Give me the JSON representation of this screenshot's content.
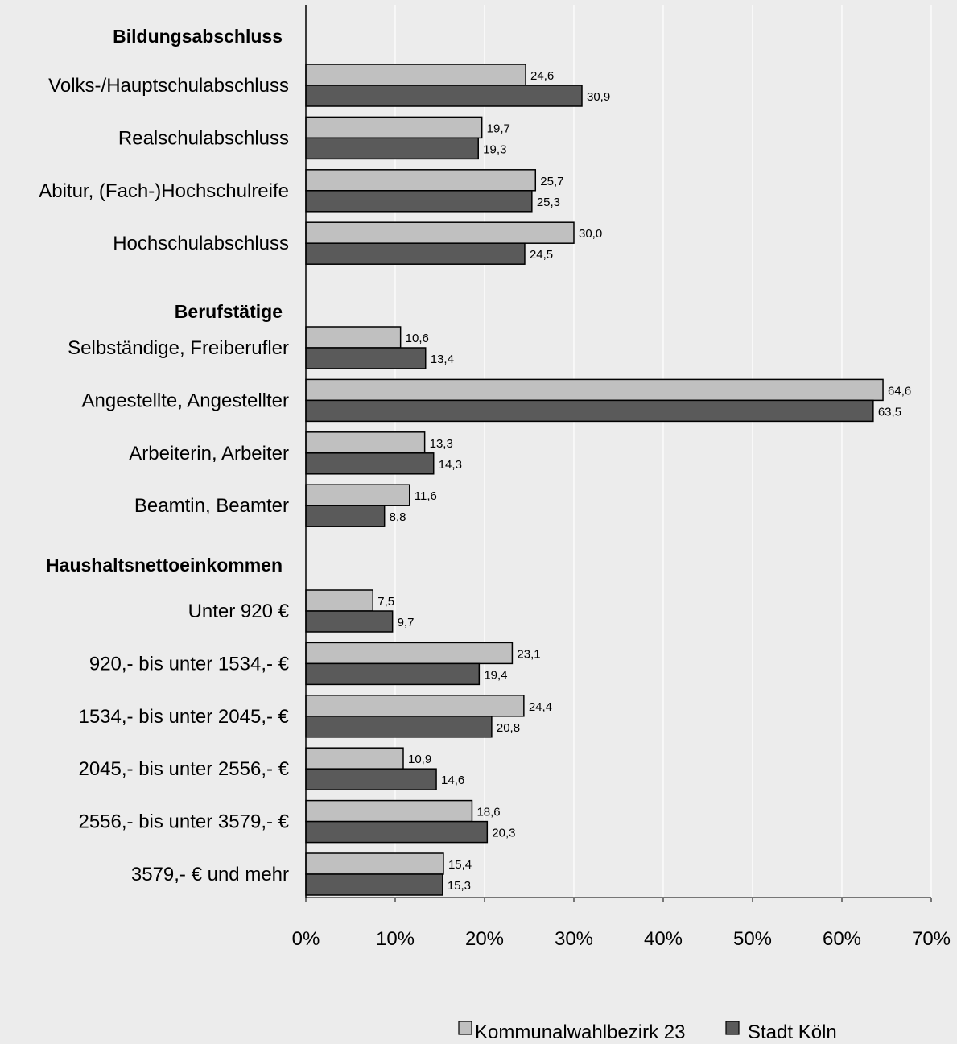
{
  "chart_data": {
    "type": "bar",
    "orientation": "horizontal",
    "x_axis": {
      "min": 0,
      "max": 70,
      "step": 10,
      "unit": "%",
      "tick_labels": [
        "0%",
        "10%",
        "20%",
        "30%",
        "40%",
        "50%",
        "60%",
        "70%"
      ]
    },
    "grid": true,
    "legend_position": "bottom-right",
    "series": [
      {
        "name": "Kommunalwahlbezirk 23",
        "color": "#c0c0c0"
      },
      {
        "name": "Stadt Köln",
        "color": "#5a5a5a"
      }
    ],
    "groups": [
      {
        "heading": "Bildungsabschluss",
        "rows": [
          {
            "label": "Volks-/Hauptschulabschluss",
            "values": [
              24.6,
              30.9
            ],
            "value_labels": [
              "24,6",
              "30,9"
            ]
          },
          {
            "label": "Realschulabschluss",
            "values": [
              19.7,
              19.3
            ],
            "value_labels": [
              "19,7",
              "19,3"
            ]
          },
          {
            "label": "Abitur, (Fach-)Hochschulreife",
            "values": [
              25.7,
              25.3
            ],
            "value_labels": [
              "25,7",
              "25,3"
            ]
          },
          {
            "label": "Hochschulabschluss",
            "values": [
              30.0,
              24.5
            ],
            "value_labels": [
              "30,0",
              "24,5"
            ]
          }
        ]
      },
      {
        "heading": "Berufstätige",
        "rows": [
          {
            "label": "Selbständige, Freiberufler",
            "values": [
              10.6,
              13.4
            ],
            "value_labels": [
              "10,6",
              "13,4"
            ]
          },
          {
            "label": "Angestellte, Angestellter",
            "values": [
              64.6,
              63.5
            ],
            "value_labels": [
              "64,6",
              "63,5"
            ]
          },
          {
            "label": "Arbeiterin, Arbeiter",
            "values": [
              13.3,
              14.3
            ],
            "value_labels": [
              "13,3",
              "14,3"
            ]
          },
          {
            "label": "Beamtin, Beamter",
            "values": [
              11.6,
              8.8
            ],
            "value_labels": [
              "11,6",
              "8,8"
            ]
          }
        ]
      },
      {
        "heading": "Haushaltsnettoeinkommen",
        "rows": [
          {
            "label": "Unter 920 €",
            "values": [
              7.5,
              9.7
            ],
            "value_labels": [
              "7,5",
              "9,7"
            ]
          },
          {
            "label": "920,- bis unter 1534,- €",
            "values": [
              23.1,
              19.4
            ],
            "value_labels": [
              "23,1",
              "19,4"
            ]
          },
          {
            "label": "1534,- bis unter 2045,- €",
            "values": [
              24.4,
              20.8
            ],
            "value_labels": [
              "24,4",
              "20,8"
            ]
          },
          {
            "label": "2045,- bis unter 2556,- €",
            "values": [
              10.9,
              14.6
            ],
            "value_labels": [
              "10,9",
              "14,6"
            ]
          },
          {
            "label": "2556,- bis unter 3579,- €",
            "values": [
              18.6,
              20.3
            ],
            "value_labels": [
              "18,6",
              "20,3"
            ]
          },
          {
            "label": "3579,- € und mehr",
            "values": [
              15.4,
              15.3
            ],
            "value_labels": [
              "15,4",
              "15,3"
            ]
          }
        ]
      }
    ]
  }
}
